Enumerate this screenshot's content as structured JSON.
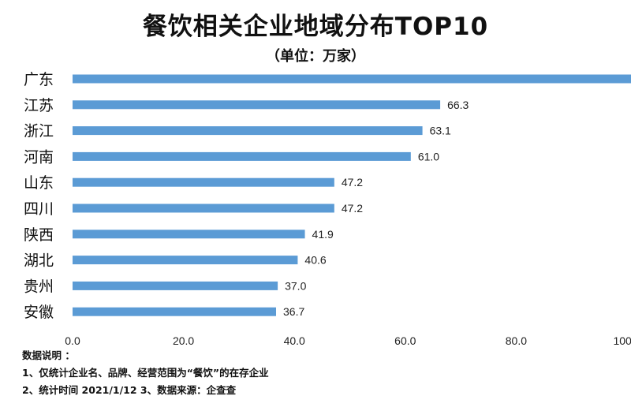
{
  "chart_data": {
    "type": "bar",
    "orientation": "horizontal",
    "title": "餐饮相关企业地域分布TOP10",
    "subtitle": "（单位：万家）",
    "categories": [
      "广东",
      "江苏",
      "浙江",
      "河南",
      "山东",
      "四川",
      "陕西",
      "湖北",
      "贵州",
      "安徽"
    ],
    "values": [
      102.0,
      66.3,
      63.1,
      61.0,
      47.2,
      47.2,
      41.9,
      40.6,
      37.0,
      36.7
    ],
    "data_labels": [
      "",
      "66.3",
      "63.1",
      "61.0",
      "47.2",
      "47.2",
      "41.9",
      "40.6",
      "37.0",
      "36.7"
    ],
    "xlim": [
      0,
      100
    ],
    "xticks": [
      "0.0",
      "20.0",
      "40.0",
      "60.0",
      "80.0",
      "100.0"
    ],
    "grid": false,
    "bar_color": "#5B9BD5"
  },
  "notes": {
    "heading": "数据说明 ：",
    "line1": "1、仅统计企业名、品牌、经营范围为“餐饮”的在存企业",
    "line2": "2、统计时间  2021/1/12     3、数据来源：企查查"
  }
}
